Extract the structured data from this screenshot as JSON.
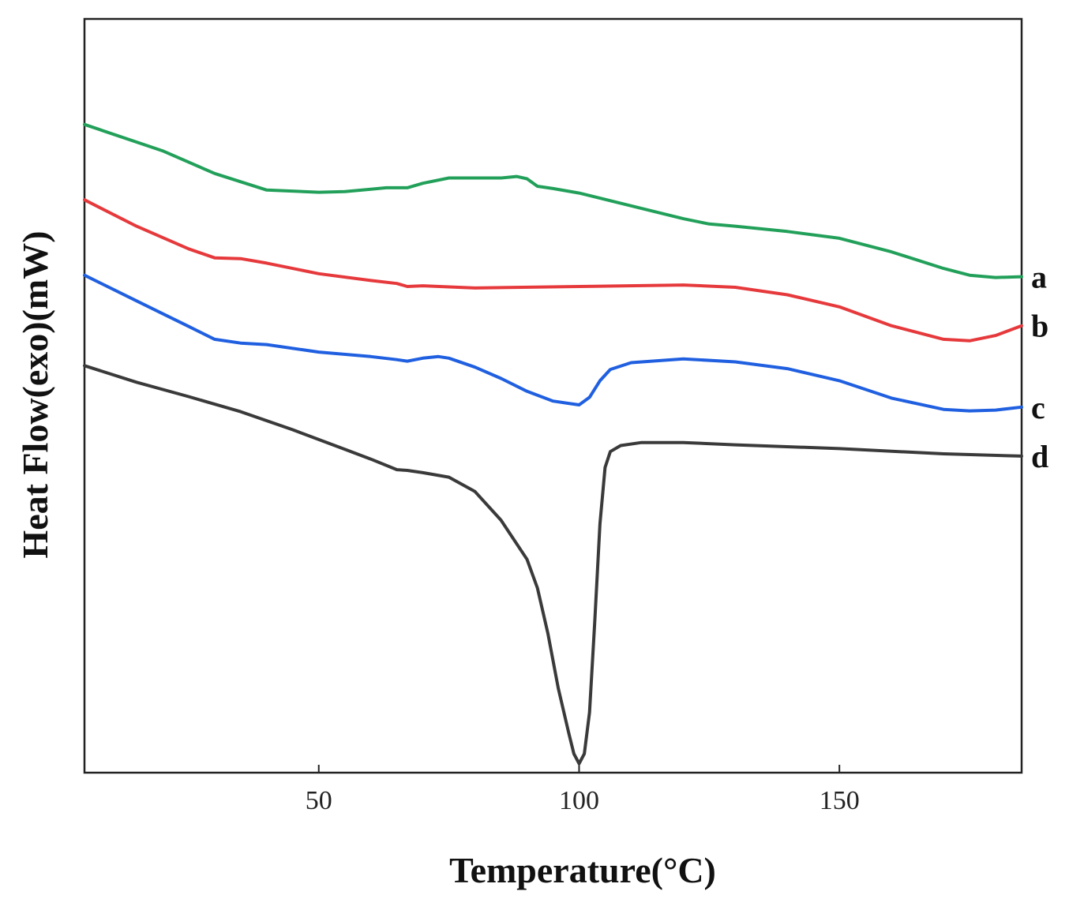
{
  "chart_data": {
    "type": "line",
    "title": "",
    "xlabel": "Temperature(°C)",
    "ylabel": "Heat Flow(exo)(mW)",
    "xlim": [
      5,
      185
    ],
    "ylim": [
      0,
      100
    ],
    "xticks": [
      50,
      100,
      150
    ],
    "yticks_shown": false,
    "grid": false,
    "legend": "inline labels at right end of curves",
    "series": [
      {
        "name": "a",
        "color": "#22a05a",
        "x": [
          5,
          20,
          30,
          40,
          50,
          55,
          60,
          63,
          67,
          70,
          75,
          85,
          88,
          90,
          92,
          95,
          100,
          110,
          120,
          125,
          130,
          140,
          150,
          160,
          170,
          175,
          180,
          185
        ],
        "y": [
          86.0,
          82.5,
          79.5,
          77.3,
          77.0,
          77.1,
          77.4,
          77.6,
          77.6,
          78.2,
          78.9,
          78.9,
          79.1,
          78.8,
          77.8,
          77.5,
          76.9,
          75.2,
          73.5,
          72.8,
          72.5,
          71.8,
          70.9,
          69.1,
          66.9,
          66.0,
          65.7,
          65.8
        ]
      },
      {
        "name": "b",
        "color": "#e6393c",
        "x": [
          5,
          15,
          25,
          30,
          35,
          40,
          50,
          60,
          65,
          67,
          70,
          80,
          100,
          120,
          130,
          140,
          150,
          160,
          170,
          175,
          180,
          185
        ],
        "y": [
          76.0,
          72.5,
          69.5,
          68.3,
          68.2,
          67.6,
          66.2,
          65.3,
          64.9,
          64.5,
          64.6,
          64.3,
          64.5,
          64.7,
          64.4,
          63.4,
          61.8,
          59.3,
          57.5,
          57.3,
          58.0,
          59.3
        ]
      },
      {
        "name": "c",
        "color": "#1f5fe0",
        "x": [
          5,
          15,
          25,
          30,
          35,
          40,
          50,
          60,
          65,
          67,
          70,
          73,
          75,
          80,
          85,
          90,
          95,
          98,
          100,
          102,
          104,
          106,
          110,
          120,
          130,
          140,
          150,
          160,
          170,
          175,
          180,
          185
        ],
        "y": [
          66.0,
          62.6,
          59.2,
          57.5,
          57.0,
          56.8,
          55.8,
          55.2,
          54.8,
          54.6,
          55.0,
          55.2,
          55.0,
          53.8,
          52.3,
          50.6,
          49.3,
          49.0,
          48.8,
          49.8,
          52.0,
          53.5,
          54.4,
          54.9,
          54.5,
          53.6,
          52.0,
          49.7,
          48.2,
          48.0,
          48.1,
          48.5
        ]
      },
      {
        "name": "d",
        "color": "#3a3a3a",
        "x": [
          5,
          15,
          25,
          35,
          45,
          55,
          60,
          65,
          67,
          70,
          75,
          80,
          85,
          90,
          92,
          94,
          96,
          98,
          99,
          100,
          101,
          102,
          103,
          104,
          105,
          106,
          108,
          112,
          120,
          130,
          150,
          170,
          185
        ],
        "y": [
          54.0,
          51.8,
          49.9,
          47.9,
          45.5,
          42.9,
          41.6,
          40.2,
          40.1,
          39.8,
          39.2,
          37.3,
          33.5,
          28.3,
          24.5,
          18.5,
          11.2,
          5.3,
          2.5,
          1.2,
          2.5,
          8.0,
          20.0,
          33.0,
          40.5,
          42.6,
          43.4,
          43.8,
          43.8,
          43.5,
          43.0,
          42.3,
          42.0
        ]
      }
    ]
  }
}
